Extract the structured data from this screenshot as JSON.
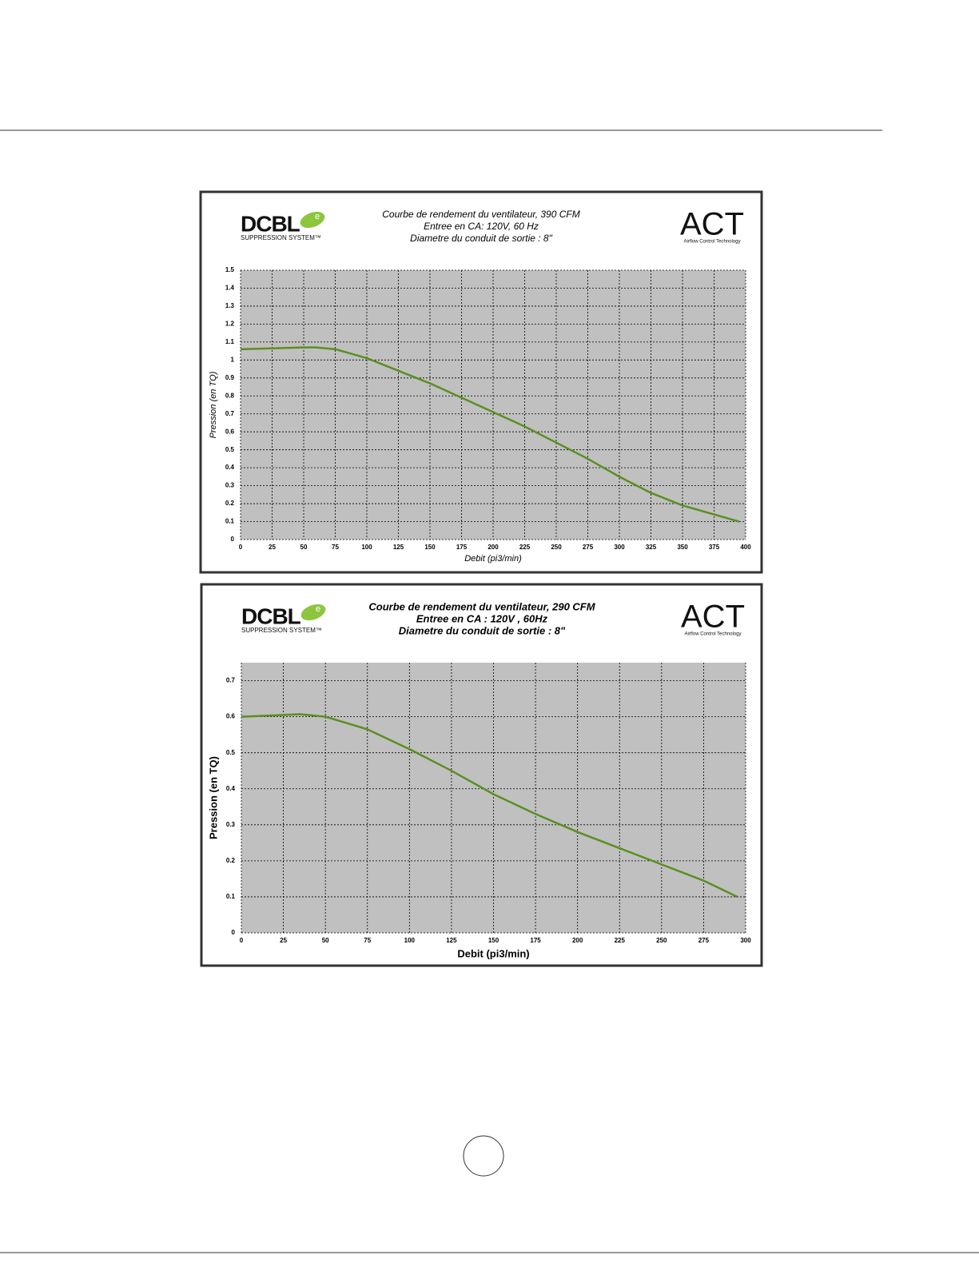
{
  "chart_data": [
    {
      "type": "line",
      "title": "Courbe de rendement du ventilateur, 390 CFM",
      "subtitle": [
        "Entree en CA: 120V, 60 Hz",
        "Diametre du conduit de sortie : 8\""
      ],
      "logo_left": {
        "name": "DCBL",
        "mark": "e",
        "tagline": "SUPPRESSION SYSTEM™"
      },
      "logo_right": {
        "name": "ACT",
        "tagline": "Airflow Control Technology"
      },
      "xlabel": "Debit (pi3/min)",
      "ylabel": "Pression (en TQ)",
      "xlim": [
        0,
        400
      ],
      "xticks": [
        0,
        25,
        50,
        75,
        100,
        125,
        150,
        175,
        200,
        225,
        250,
        275,
        300,
        325,
        350,
        375,
        400
      ],
      "ylim": [
        0,
        1.5
      ],
      "yticks": [
        0,
        0.1,
        0.2,
        0.3,
        0.4,
        0.5,
        0.6,
        0.7,
        0.8,
        0.9,
        1,
        1.1,
        1.2,
        1.3,
        1.4,
        1.5
      ],
      "grid": true,
      "x": [
        0,
        25,
        50,
        60,
        75,
        100,
        125,
        150,
        175,
        200,
        225,
        250,
        275,
        300,
        325,
        350,
        375,
        395
      ],
      "series": [
        {
          "name": null,
          "color": "#5b8f22",
          "values": [
            1.06,
            1.065,
            1.07,
            1.07,
            1.06,
            1.01,
            0.94,
            0.87,
            0.79,
            0.71,
            0.63,
            0.54,
            0.45,
            0.35,
            0.26,
            0.19,
            0.14,
            0.1
          ]
        }
      ]
    },
    {
      "type": "line",
      "title": "Courbe de rendement du ventilateur, 290 CFM",
      "subtitle": [
        "Entree en CA : 120V , 60Hz",
        "Diametre du conduit de sortie : 8\""
      ],
      "logo_left": {
        "name": "DCBL",
        "mark": "e",
        "tagline": "SUPPRESSION SYSTEM™"
      },
      "logo_right": {
        "name": "ACT",
        "tagline": "Airflow Control Technology"
      },
      "xlabel": "Debit (pi3/min)",
      "ylabel": "Pression (en TQ)",
      "xlim": [
        0,
        300
      ],
      "xticks": [
        0,
        25,
        50,
        75,
        100,
        125,
        150,
        175,
        200,
        225,
        250,
        275,
        300
      ],
      "ylim": [
        0,
        0.75
      ],
      "yticks": [
        0,
        0.1,
        0.2,
        0.3,
        0.4,
        0.5,
        0.6,
        0.7
      ],
      "grid": true,
      "x": [
        0,
        25,
        35,
        50,
        75,
        100,
        125,
        150,
        175,
        200,
        225,
        250,
        275,
        295
      ],
      "series": [
        {
          "name": null,
          "color": "#5b8f22",
          "values": [
            0.6,
            0.605,
            0.607,
            0.6,
            0.565,
            0.51,
            0.45,
            0.385,
            0.33,
            0.28,
            0.235,
            0.19,
            0.145,
            0.1
          ]
        }
      ]
    }
  ]
}
